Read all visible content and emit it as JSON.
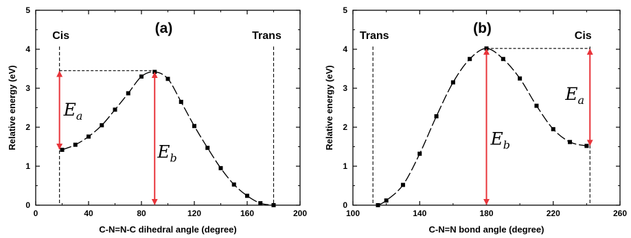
{
  "chart_data": [
    {
      "type": "line",
      "panel_label": "(a)",
      "xlabel": "C-N=N-C dihedral angle (degree)",
      "ylabel": "Relative energy (eV)",
      "xlim": [
        0,
        200
      ],
      "ylim": [
        0,
        5
      ],
      "xticks": [
        0,
        40,
        80,
        120,
        160,
        200
      ],
      "yticks": [
        0,
        1,
        2,
        3,
        4,
        5
      ],
      "series": [
        {
          "x": [
            20,
            30,
            40,
            50,
            60,
            70,
            80,
            90,
            100,
            110,
            120,
            130,
            140,
            150,
            160,
            170,
            180
          ],
          "y": [
            1.42,
            1.55,
            1.76,
            2.05,
            2.45,
            2.87,
            3.3,
            3.42,
            3.24,
            2.65,
            2.03,
            1.47,
            0.95,
            0.53,
            0.24,
            0.05,
            0.0
          ]
        }
      ],
      "vlines": [
        18,
        180
      ],
      "state_labels": [
        "Cis",
        "Trans"
      ],
      "barrier_a": {
        "base": "E",
        "sub": "a",
        "from": 1.42,
        "to": 3.45,
        "x": 18
      },
      "barrier_b": {
        "base": "E",
        "sub": "b",
        "from": 0.0,
        "to": 3.42,
        "x": 90
      },
      "dashed_top": {
        "x1": 18,
        "x2": 90,
        "y": 3.45
      }
    },
    {
      "type": "line",
      "panel_label": "(b)",
      "xlabel": "C-N=N bond angle (degree)",
      "ylabel": "Relative energy (eV)",
      "xlim": [
        100,
        260
      ],
      "ylim": [
        0,
        5
      ],
      "xticks": [
        100,
        140,
        180,
        220,
        260
      ],
      "yticks": [
        0,
        1,
        2,
        3,
        4,
        5
      ],
      "series": [
        {
          "x": [
            115,
            120,
            130,
            140,
            150,
            160,
            170,
            180,
            190,
            200,
            210,
            220,
            230,
            240
          ],
          "y": [
            0.0,
            0.12,
            0.52,
            1.32,
            2.28,
            3.15,
            3.75,
            4.02,
            3.75,
            3.25,
            2.55,
            1.95,
            1.62,
            1.52
          ]
        }
      ],
      "vlines": [
        112,
        242
      ],
      "state_labels": [
        "Trans",
        "Cis"
      ],
      "barrier_a": {
        "base": "E",
        "sub": "a",
        "from": 1.52,
        "to": 4.02,
        "x": 242
      },
      "barrier_b": {
        "base": "E",
        "sub": "b",
        "from": 0.0,
        "to": 4.02,
        "x": 180
      },
      "dashed_top": {
        "x1": 180,
        "x2": 242,
        "y": 4.02
      }
    }
  ]
}
